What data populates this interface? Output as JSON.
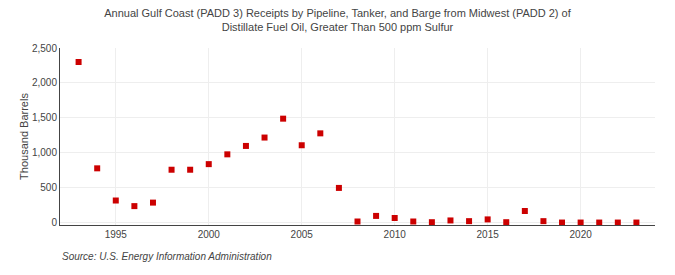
{
  "chart_data": {
    "type": "scatter",
    "title": "Annual Gulf Coast (PADD 3) Receipts by Pipeline, Tanker, and Barge from Midwest (PADD 2) of\nDistillate Fuel Oil, Greater Than 500 ppm Sulfur",
    "ylabel": "Thousand Barrels",
    "annotations": [
      "Source: U.S. Energy Information Administration"
    ],
    "x": [
      1993,
      1994,
      1995,
      1996,
      1997,
      1998,
      1999,
      2000,
      2001,
      2002,
      2003,
      2004,
      2005,
      2006,
      2007,
      2008,
      2009,
      2010,
      2011,
      2012,
      2013,
      2014,
      2015,
      2016,
      2017,
      2018,
      2019,
      2020,
      2021,
      2022,
      2023
    ],
    "values": [
      2300,
      780,
      320,
      240,
      290,
      760,
      760,
      840,
      980,
      1100,
      1220,
      1490,
      1110,
      1280,
      500,
      20,
      100,
      70,
      20,
      10,
      35,
      25,
      50,
      10,
      170,
      25,
      5,
      5,
      5,
      5,
      5
    ],
    "color": "#cc0000",
    "marker": "square",
    "xlim": [
      1992.0,
      2024.0
    ],
    "ylim": [
      -30,
      2500
    ],
    "xticks": [
      1995,
      2000,
      2005,
      2010,
      2015,
      2020
    ],
    "yticks": [
      0,
      500,
      {
        "value": 1000,
        "label": "1,000"
      },
      {
        "value": 1500,
        "label": "1,500"
      },
      {
        "value": 2000,
        "label": "2,000"
      },
      {
        "value": 2500,
        "label": "2,500"
      }
    ],
    "grid": true
  }
}
